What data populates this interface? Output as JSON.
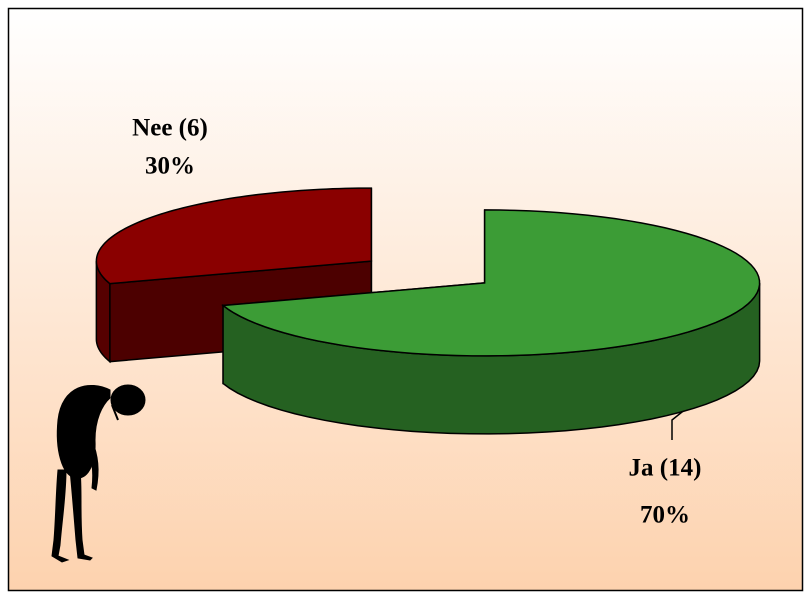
{
  "chart_data": {
    "type": "pie",
    "categories": [
      "Ja (14)",
      "Nee (6)"
    ],
    "values": [
      70,
      30
    ],
    "value_labels": [
      "70%",
      "30%"
    ],
    "colors": [
      "#3c9c36",
      "#8a0000"
    ]
  }
}
